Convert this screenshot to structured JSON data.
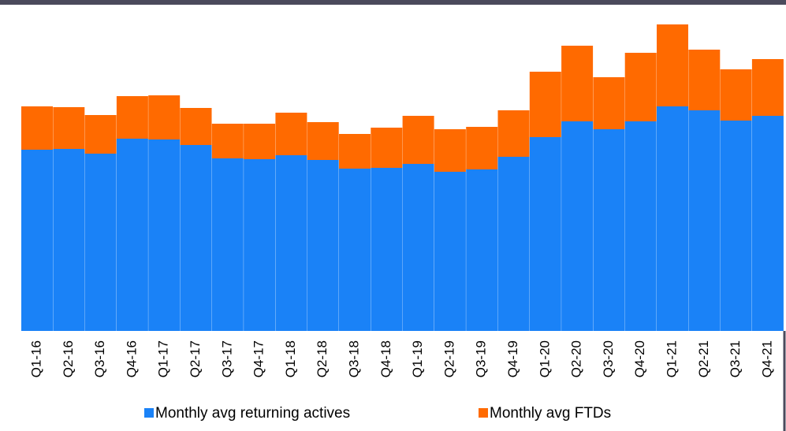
{
  "chart_data": {
    "type": "stacked_bar",
    "categories": [
      "Q1-16",
      "Q2-16",
      "Q3-16",
      "Q4-16",
      "Q1-17",
      "Q2-17",
      "Q3-17",
      "Q4-17",
      "Q1-18",
      "Q2-18",
      "Q3-18",
      "Q4-18",
      "Q1-19",
      "Q2-19",
      "Q3-19",
      "Q4-19",
      "Q1-20",
      "Q2-20",
      "Q3-20",
      "Q4-20",
      "Q1-21",
      "Q2-21",
      "Q3-21",
      "Q4-21"
    ],
    "series": [
      {
        "name": "Monthly avg returning actives",
        "color": "#1a82f7",
        "values": [
          230,
          231,
          225,
          244,
          243,
          236,
          219,
          218,
          223,
          217,
          206,
          207,
          212,
          202,
          205,
          221,
          246,
          266,
          256,
          266,
          285,
          280,
          267,
          273
        ]
      },
      {
        "name": "Monthly avg FTDs",
        "color": "#ff6a00",
        "values": [
          55,
          53,
          49,
          54,
          56,
          47,
          44,
          45,
          54,
          48,
          44,
          51,
          61,
          54,
          54,
          59,
          83,
          96,
          66,
          87,
          104,
          77,
          65,
          72
        ]
      }
    ],
    "ylim": [
      0,
      400
    ]
  }
}
